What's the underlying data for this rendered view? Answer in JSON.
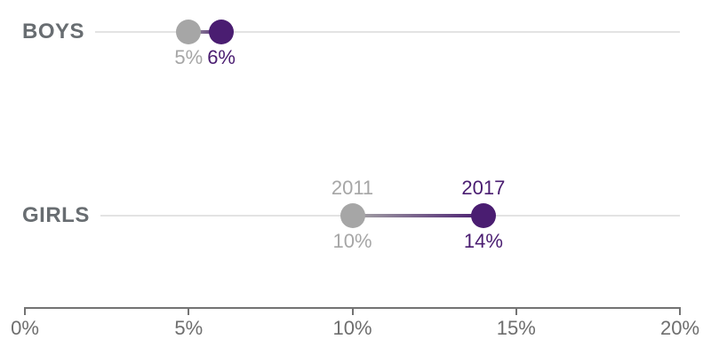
{
  "chart_data": {
    "type": "dumbbell",
    "orientation": "horizontal",
    "title": "",
    "xlabel": "",
    "ylabel": "",
    "categories": [
      "BOYS",
      "GIRLS"
    ],
    "series": [
      {
        "name": "2011",
        "color": "#a6a6a6",
        "values": [
          5,
          10
        ],
        "value_labels": [
          "5%",
          "10%"
        ]
      },
      {
        "name": "2017",
        "color": "#4a1d71",
        "values": [
          6,
          14
        ],
        "value_labels": [
          "6%",
          "14%"
        ]
      }
    ],
    "series_name_labels_shown_on_row": "GIRLS",
    "xlim": [
      0,
      20
    ],
    "x_ticks": [
      {
        "value": 0,
        "label": "0%"
      },
      {
        "value": 5,
        "label": "5%"
      },
      {
        "value": 10,
        "label": "10%"
      },
      {
        "value": 15,
        "label": "15%"
      },
      {
        "value": 20,
        "label": "20%"
      }
    ],
    "grid": "light horizontal line per category row",
    "legend_position": "inline year labels above GIRLS dots",
    "colors": {
      "category_label": "#686d71",
      "row_line": "#e3e3e3",
      "axis_line": "#737373",
      "tick_label": "#6e6e6e",
      "series_2011": "#a6a6a6",
      "series_2017": "#4a1d71"
    }
  }
}
